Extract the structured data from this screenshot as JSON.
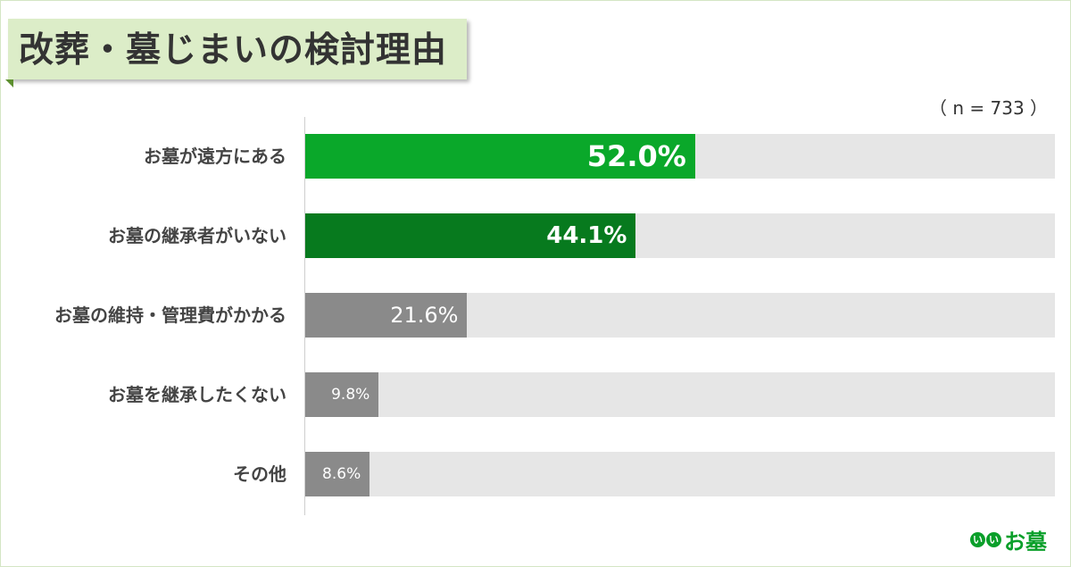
{
  "chart_data": {
    "type": "bar",
    "orientation": "horizontal",
    "title": "改葬・墓じまいの検討理由",
    "sample_size": "（ n = 733 ）",
    "categories": [
      "お墓が遠方にある",
      "お墓の継承者がいない",
      "お墓の維持・管理費がかかる",
      "お墓を継承したくない",
      "その他"
    ],
    "values": [
      52.0,
      44.1,
      21.6,
      9.8,
      8.6
    ],
    "value_labels": [
      "52.0%",
      "44.1%",
      "21.6%",
      "9.8%",
      "8.6%"
    ],
    "xlim": [
      0,
      100
    ],
    "bar_colors": [
      "#0aa82a",
      "#077a1e",
      "#8a8a8a",
      "#8a8a8a",
      "#8a8a8a"
    ],
    "track_color": "#e6e6e6",
    "grid": false,
    "legend": "none"
  },
  "logo": {
    "dots": [
      "い",
      "い"
    ],
    "text": "お墓",
    "color": "#0a9f2a"
  }
}
